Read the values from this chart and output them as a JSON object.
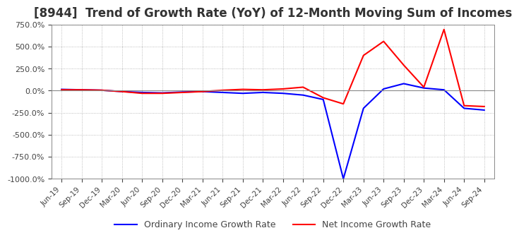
{
  "title": "[8944]  Trend of Growth Rate (YoY) of 12-Month Moving Sum of Incomes",
  "title_fontsize": 12,
  "ylim": [
    -1000,
    750
  ],
  "yticks": [
    -1000,
    -750,
    -500,
    -250,
    0,
    250,
    500,
    750
  ],
  "background_color": "#ffffff",
  "grid_color": "#aaaaaa",
  "ordinary_color": "#0000ff",
  "net_color": "#ff0000",
  "legend_labels": [
    "Ordinary Income Growth Rate",
    "Net Income Growth Rate"
  ],
  "x_labels": [
    "Jun-19",
    "Sep-19",
    "Dec-19",
    "Mar-20",
    "Jun-20",
    "Sep-20",
    "Dec-20",
    "Mar-21",
    "Jun-21",
    "Sep-21",
    "Dec-21",
    "Mar-22",
    "Jun-22",
    "Sep-22",
    "Dec-22",
    "Mar-23",
    "Jun-23",
    "Sep-23",
    "Dec-23",
    "Mar-24",
    "Jun-24",
    "Sep-24"
  ],
  "ordinary_values": [
    15,
    10,
    5,
    -10,
    -20,
    -25,
    -15,
    -10,
    -20,
    -30,
    -20,
    -30,
    -50,
    -100,
    -1000,
    -200,
    20,
    80,
    30,
    10,
    -200,
    -220
  ],
  "net_values": [
    10,
    10,
    5,
    -10,
    -30,
    -30,
    -20,
    -10,
    5,
    15,
    10,
    20,
    40,
    -80,
    -150,
    400,
    560,
    290,
    40,
    695,
    -170,
    -180
  ]
}
